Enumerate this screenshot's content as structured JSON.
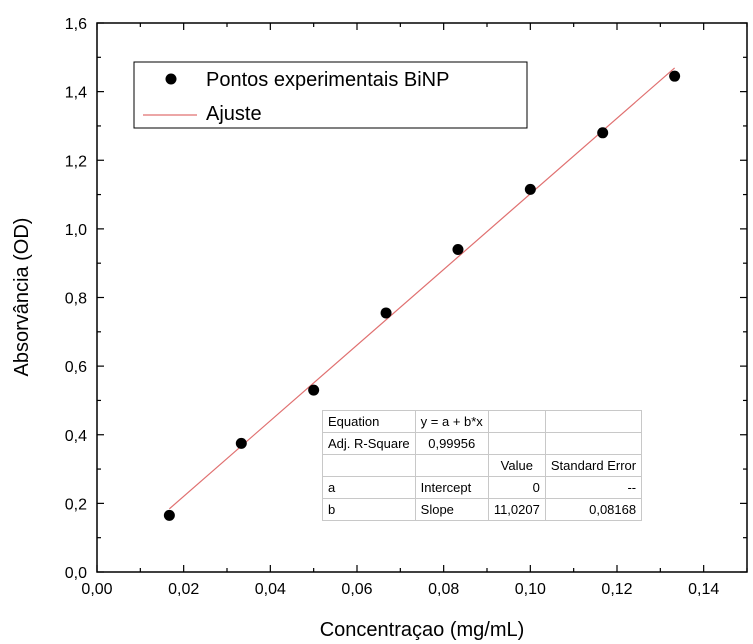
{
  "chart_data": {
    "type": "scatter",
    "xlabel": "Concentraçao (mg/mL)",
    "ylabel": "Absorvância (OD)",
    "xlim": [
      0.0,
      0.15
    ],
    "ylim": [
      0.0,
      1.6
    ],
    "x_ticks": [
      "0,00",
      "0,02",
      "0,04",
      "0,06",
      "0,08",
      "0,10",
      "0,12",
      "0,14"
    ],
    "y_ticks": [
      "0,0",
      "0,2",
      "0,4",
      "0,6",
      "0,8",
      "1,0",
      "1,2",
      "1,4",
      "1,6"
    ],
    "grid": false,
    "legend_position": "top-left",
    "series": [
      {
        "name": "Pontos experimentais BiNP",
        "kind": "scatter",
        "color": "#000000",
        "x": [
          0.0167,
          0.0333,
          0.05,
          0.0667,
          0.0833,
          0.1,
          0.1167,
          0.1333
        ],
        "y": [
          0.165,
          0.375,
          0.53,
          0.755,
          0.94,
          1.115,
          1.28,
          1.445
        ]
      },
      {
        "name": "Ajuste",
        "kind": "line",
        "color": "#e07070",
        "intercept": 0,
        "slope": 11.0207,
        "x_range": [
          0.0167,
          0.1333
        ]
      }
    ],
    "fit_table": {
      "rows": [
        [
          "Equation",
          "y = a + b*x",
          "",
          ""
        ],
        [
          "Adj. R-Square",
          "0,99956",
          "",
          ""
        ],
        [
          "",
          "",
          "Value",
          "Standard Error"
        ],
        [
          "a",
          "Intercept",
          "0",
          "--"
        ],
        [
          "b",
          "Slope",
          "11,0207",
          "0,08168"
        ]
      ]
    }
  }
}
